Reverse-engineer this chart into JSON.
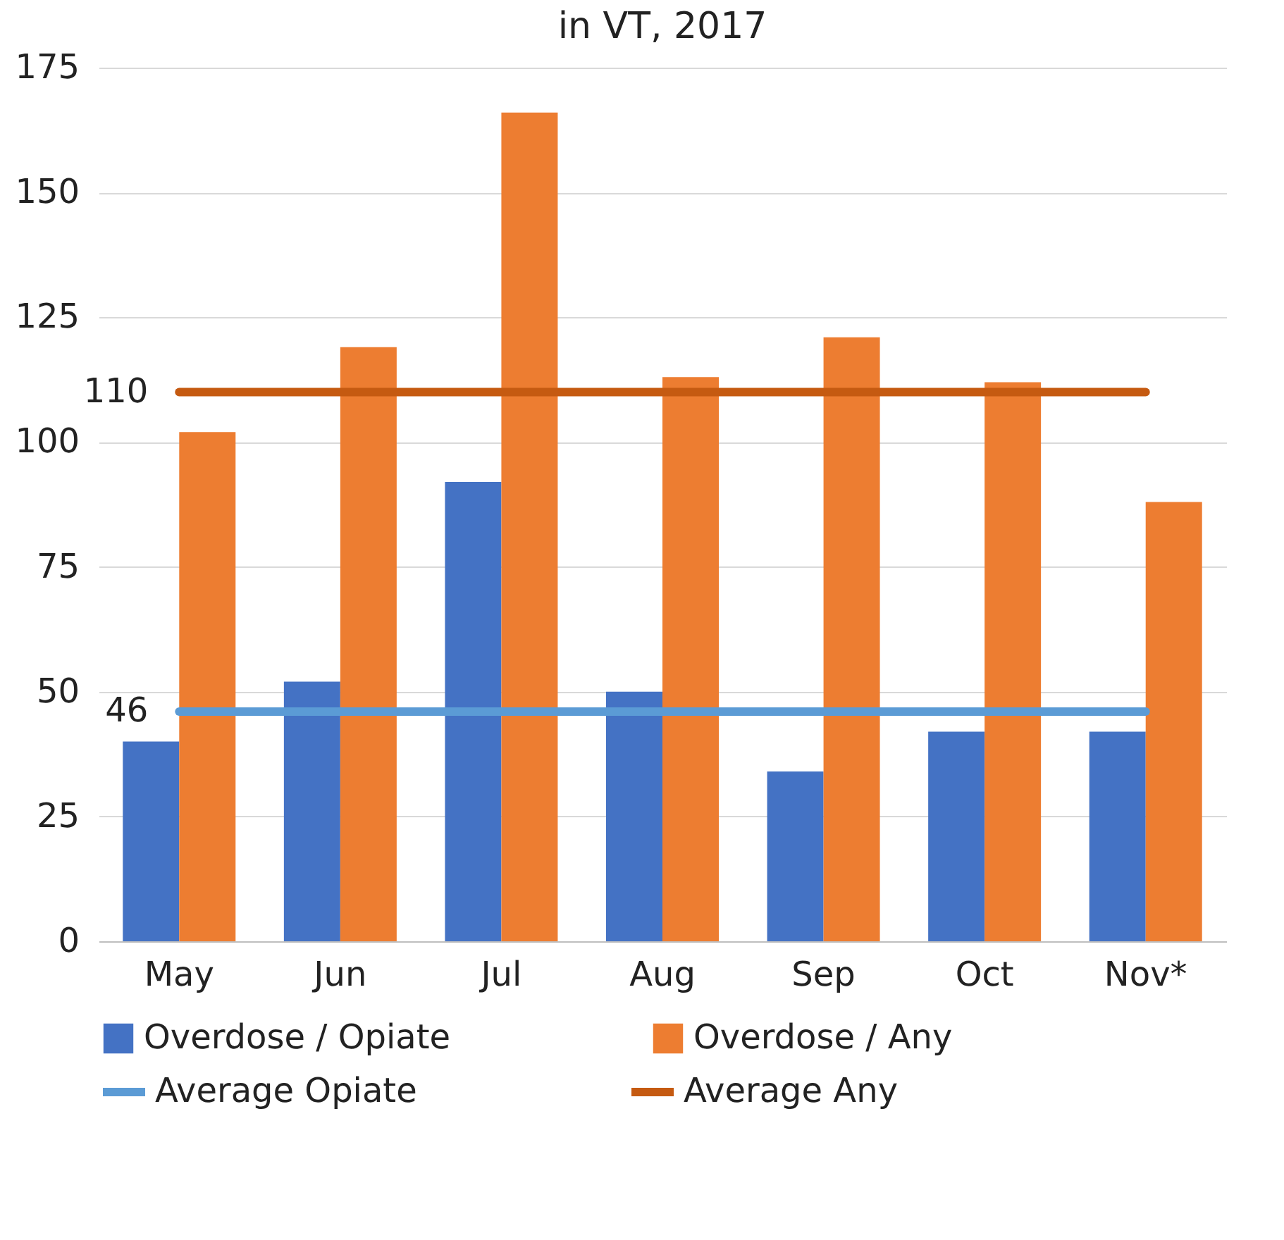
{
  "chart_data": {
    "type": "bar",
    "title": "in VT, 2017",
    "categories": [
      "May",
      "Jun",
      "Jul",
      "Aug",
      "Sep",
      "Oct",
      "Nov*"
    ],
    "series": [
      {
        "name": "Overdose / Opiate",
        "color": "#4472c4",
        "values": [
          40,
          52,
          92,
          50,
          34,
          42,
          42
        ]
      },
      {
        "name": "Overdose / Any",
        "color": "#ed7d31",
        "values": [
          102,
          119,
          166,
          113,
          121,
          112,
          88
        ]
      },
      {
        "name": "Average Opiate",
        "type": "line",
        "color": "#5b9bd5",
        "values": [
          46,
          46,
          46,
          46,
          46,
          46,
          46
        ],
        "value_labels": [
          "46",
          null,
          null,
          null,
          null,
          null,
          null
        ]
      },
      {
        "name": "Average Any",
        "type": "line",
        "color": "#c55a11",
        "values": [
          110,
          110,
          110,
          110,
          110,
          110,
          110
        ],
        "value_labels": [
          "110",
          null,
          null,
          null,
          null,
          null,
          null
        ]
      }
    ],
    "ylim": [
      0,
      175
    ],
    "yticks": [
      0,
      25,
      50,
      75,
      100,
      125,
      150,
      175
    ],
    "grid": "y",
    "legend": "bottom"
  }
}
